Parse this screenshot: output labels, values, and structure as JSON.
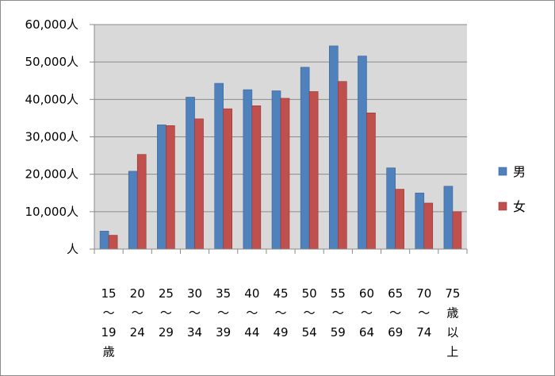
{
  "chart_data": {
    "type": "bar",
    "categories": [
      [
        "15",
        "～",
        "19",
        "歳"
      ],
      [
        "20",
        "～",
        "24"
      ],
      [
        "25",
        "～",
        "29"
      ],
      [
        "30",
        "～",
        "34"
      ],
      [
        "35",
        "～",
        "39"
      ],
      [
        "40",
        "～",
        "44"
      ],
      [
        "45",
        "～",
        "49"
      ],
      [
        "50",
        "～",
        "54"
      ],
      [
        "55",
        "～",
        "59"
      ],
      [
        "60",
        "～",
        "64"
      ],
      [
        "65",
        "～",
        "69"
      ],
      [
        "70",
        "～",
        "74"
      ],
      [
        "75",
        "歳",
        "以",
        "上"
      ]
    ],
    "series": [
      {
        "name": "男",
        "color": "#4f81bd",
        "values": [
          4800,
          20800,
          33200,
          40600,
          44300,
          42600,
          42300,
          48600,
          54300,
          51600,
          21700,
          15000,
          16800
        ]
      },
      {
        "name": "女",
        "color": "#c0504d",
        "values": [
          3700,
          25300,
          33000,
          34800,
          37500,
          38300,
          40300,
          42100,
          44800,
          36400,
          16000,
          12300,
          10000
        ]
      }
    ],
    "yticks": [
      {
        "value": 0,
        "label": "人"
      },
      {
        "value": 10000,
        "label": "10,000人"
      },
      {
        "value": 20000,
        "label": "20,000人"
      },
      {
        "value": 30000,
        "label": "30,000人"
      },
      {
        "value": 40000,
        "label": "40,000人"
      },
      {
        "value": 50000,
        "label": "50,000人"
      },
      {
        "value": 60000,
        "label": "60,000人"
      }
    ],
    "ylim": [
      0,
      60000
    ],
    "grid": true,
    "legend": "right",
    "plot_background": "#d9d9d9"
  }
}
